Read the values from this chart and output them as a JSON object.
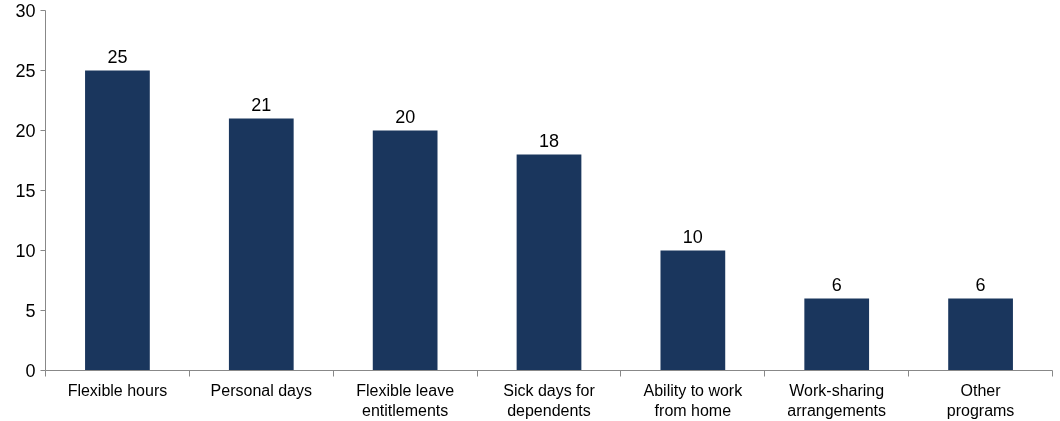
{
  "chart_data": {
    "type": "bar",
    "categories": [
      "Flexible hours",
      "Personal days",
      "Flexible leave\nentitlements",
      "Sick days for\ndependents",
      "Ability to work\nfrom home",
      "Work-sharing\narrangements",
      "Other\nprograms"
    ],
    "values": [
      25,
      21,
      20,
      18,
      10,
      6,
      6
    ],
    "color": "#1a365d",
    "ylim": [
      0,
      30
    ],
    "yticks": [
      0,
      5,
      10,
      15,
      20,
      25,
      30
    ],
    "grid": false,
    "data_labels": true
  }
}
